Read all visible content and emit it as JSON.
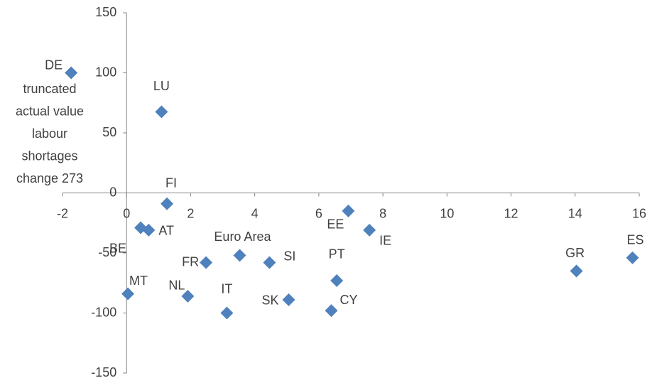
{
  "chart_data": {
    "type": "scatter",
    "labels": [
      "DE",
      "LU",
      "FI",
      "EE",
      "IE",
      "AT",
      "BE",
      "FR",
      "Euro Area",
      "SI",
      "PT",
      "GR",
      "ES",
      "MT",
      "NL",
      "IT",
      "SK",
      "CY"
    ],
    "x": [
      -1.73,
      1.09,
      1.26,
      6.92,
      7.58,
      0.69,
      0.44,
      2.48,
      3.53,
      4.46,
      6.56,
      14.04,
      15.79,
      0.04,
      1.91,
      3.13,
      5.06,
      6.39
    ],
    "values": [
      100,
      67.5,
      -9,
      -15,
      -31,
      -31,
      -29,
      -58,
      -52,
      -58,
      -73,
      -65,
      -54,
      -84,
      -86,
      -100,
      -89,
      -98
    ],
    "color": "#4f81bd",
    "annotation": [
      "truncated",
      "actual value",
      "labour",
      "shortages",
      "change 273"
    ],
    "xlim": [
      -2,
      16
    ],
    "xticks": [
      -2,
      0,
      2,
      4,
      6,
      8,
      10,
      12,
      14,
      16
    ],
    "ylim": [
      -150,
      150
    ],
    "yticks": [
      -150,
      -100,
      -50,
      0,
      50,
      100,
      150
    ],
    "grid": false
  }
}
